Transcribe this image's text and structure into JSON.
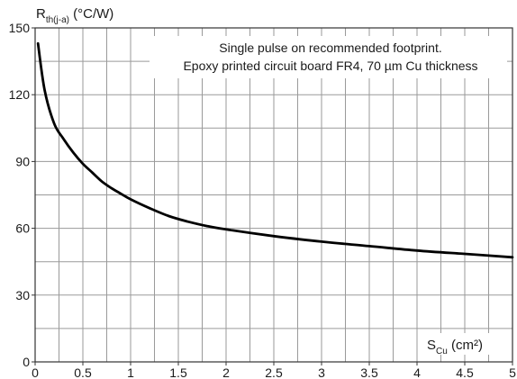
{
  "chart_data": {
    "type": "line",
    "ylabel": {
      "main": "R",
      "sub": "th(j-a)",
      "unit": " (°C/W)"
    },
    "xlabel": {
      "main": "S",
      "sub": "Cu",
      "unit": " (cm²)"
    },
    "annotation": [
      "Single pulse on recommended footprint.",
      "Epoxy printed circuit board FR4, 70 µm Cu thickness"
    ],
    "xlim": [
      0,
      5
    ],
    "ylim": [
      0,
      150
    ],
    "x_ticks": [
      "0",
      "0.5",
      "1",
      "1.5",
      "2",
      "2.5",
      "3",
      "3.5",
      "4",
      "4.5",
      "5"
    ],
    "y_ticks": [
      "0",
      "30",
      "60",
      "90",
      "120",
      "150"
    ],
    "grid": true,
    "series": [
      {
        "color": "#000000",
        "x": [
          0.03,
          0.1,
          0.2,
          0.3,
          0.4,
          0.5,
          0.6,
          0.7,
          0.8,
          0.9,
          1.0,
          1.2,
          1.4,
          1.6,
          1.8,
          2.0,
          2.5,
          3.0,
          3.5,
          4.0,
          4.5,
          5.0
        ],
        "y": [
          143,
          122,
          107,
          100,
          94,
          89,
          85,
          81,
          78,
          75.5,
          73,
          69,
          65.5,
          63,
          61,
          59.5,
          56.5,
          54,
          52,
          50,
          48.5,
          47
        ]
      }
    ]
  }
}
